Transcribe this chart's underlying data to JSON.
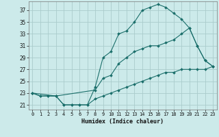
{
  "xlabel": "Humidex (Indice chaleur)",
  "bg_color": "#cceaea",
  "grid_color": "#aacccc",
  "line_color": "#1a6e6a",
  "x_ticks": [
    0,
    1,
    2,
    3,
    4,
    5,
    6,
    7,
    8,
    9,
    10,
    11,
    12,
    13,
    14,
    15,
    16,
    17,
    18,
    19,
    20,
    21,
    22,
    23
  ],
  "y_ticks": [
    21,
    23,
    25,
    27,
    29,
    31,
    33,
    35,
    37
  ],
  "ylim": [
    20.2,
    38.5
  ],
  "xlim": [
    -0.5,
    23.5
  ],
  "line1_x": [
    0,
    1,
    2,
    3,
    4,
    5,
    6,
    7,
    8,
    9,
    10,
    11,
    12,
    13,
    14,
    15,
    16,
    17,
    18,
    19,
    20,
    21,
    22,
    23
  ],
  "line1_y": [
    23,
    22.5,
    22.5,
    22.5,
    21,
    21,
    21,
    21,
    24,
    29,
    30,
    33,
    33.5,
    35,
    37,
    37.5,
    38,
    37.5,
    36.5,
    35.5,
    34,
    31,
    28.5,
    27.5
  ],
  "line2_x": [
    0,
    3,
    8,
    9,
    10,
    11,
    12,
    13,
    14,
    15,
    16,
    17,
    18,
    19,
    20,
    21,
    22,
    23
  ],
  "line2_y": [
    23,
    22.5,
    23.5,
    25.5,
    26,
    28,
    29,
    30,
    30.5,
    31,
    31,
    31.5,
    32,
    33,
    34,
    31,
    28.5,
    27.5
  ],
  "line3_x": [
    0,
    1,
    2,
    3,
    4,
    5,
    6,
    7,
    8,
    9,
    10,
    11,
    12,
    13,
    14,
    15,
    16,
    17,
    18,
    19,
    20,
    21,
    22,
    23
  ],
  "line3_y": [
    23,
    22.5,
    22.5,
    22.5,
    21,
    21,
    21,
    21,
    22,
    22.5,
    23,
    23.5,
    24,
    24.5,
    25,
    25.5,
    26,
    26.5,
    26.5,
    27,
    27,
    27,
    27,
    27.5
  ]
}
